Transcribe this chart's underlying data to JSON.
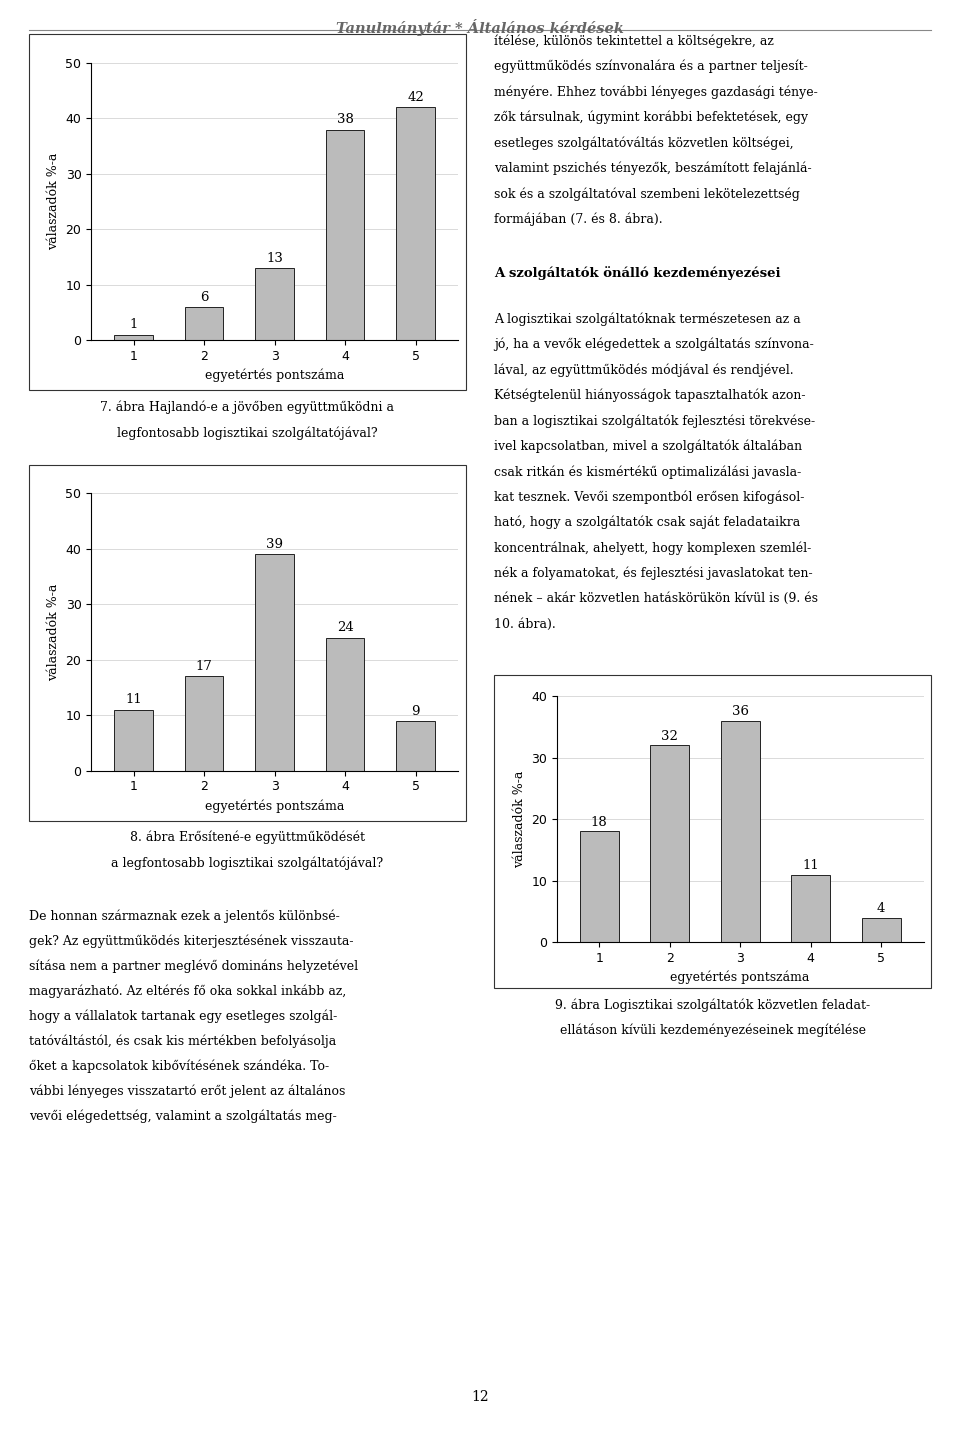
{
  "page_title": "Tanulmánytár * Általános kérdések",
  "page_number": "12",
  "background_color": "#ffffff",
  "bar_color": "#bbbbbb",
  "bar_edgecolor": "#222222",
  "chart1": {
    "values": [
      1,
      6,
      13,
      38,
      42
    ],
    "categories": [
      1,
      2,
      3,
      4,
      5
    ],
    "ylabel": "válaszadók %-a",
    "xlabel": "egyetértés pontszáma",
    "ylim": [
      0,
      50
    ],
    "yticks": [
      0,
      10,
      20,
      30,
      40,
      50
    ]
  },
  "caption1_line1": "7. ábra Hajlandó-e a jövőben együttműködni a",
  "caption1_line2": "legfontosabb logisztikai szolgáltatójával?",
  "chart2": {
    "values": [
      11,
      17,
      39,
      24,
      9
    ],
    "categories": [
      1,
      2,
      3,
      4,
      5
    ],
    "ylabel": "válaszadók %-a",
    "xlabel": "egyetértés pontszáma",
    "ylim": [
      0,
      50
    ],
    "yticks": [
      0,
      10,
      20,
      30,
      40,
      50
    ]
  },
  "caption2_line1": "8. ábra Erősítené-e együttműködését",
  "caption2_line2": "a legfontosabb logisztikai szolgáltatójával?",
  "right_text_top_lines": [
    "ítélése, különös tekintettel a költségekre, az",
    "együttműködés színvonalára és a partner teljesít-",
    "ményére. Ehhez további lényeges gazdasági ténye-",
    "zők társulnak, úgymint korábbi befektetések, egy",
    "esetleges szolgáltatóváltás közvetlen költségei,",
    "valamint pszichés tényezők, beszámított felajánlá-",
    "sok és a szolgáltatóval szembeni lekötelezettség",
    "formájában (7. és 8. ábra)."
  ],
  "right_heading": "A szolgáltatók önálló kezdeményezései",
  "right_text_middle_lines": [
    "A logisztikai szolgáltatóknak természetesen az a",
    "jó, ha a vevők elégedettek a szolgáltatás színvona-",
    "lával, az együttműködés módjával és rendjével.",
    "Kétségtelenül hiányosságok tapasztalhatók azon-",
    "ban a logisztikai szolgáltatók fejlesztési törekvése-",
    "ivel kapcsolatban, mivel a szolgáltatók általában",
    "csak ritkán és kismértékű optimalizálási javasla-",
    "kat tesznek. Vevői szempontból erősen kifogásol-",
    "ható, hogy a szolgáltatók csak saját feladataikra",
    "koncentrálnak, ahelyett, hogy komplexen szemlél-",
    "nék a folyamatokat, és fejlesztési javaslatokat ten-",
    "nének – akár közvetlen hatáskörükön kívül is (9. és",
    "10. ábra)."
  ],
  "left_text_bottom_lines": [
    "De honnan származnak ezek a jelentős különbsé-",
    "gek? Az együttműködés kiterjesztésének visszauta-",
    "sítása nem a partner meglévő domináns helyzetével",
    "magyarázható. Az eltérés fő oka sokkal inkább az,",
    "hogy a vállalatok tartanak egy esetleges szolgál-",
    "tatóváltástól, és csak kis mértékben befolyásolja",
    "őket a kapcsolatok kibővítésének szándéka. To-",
    "vábbi lényeges visszatartó erőt jelent az általános",
    "vevői elégedettség, valamint a szolgáltatás meg-"
  ],
  "chart3": {
    "values": [
      18,
      32,
      36,
      11,
      4
    ],
    "categories": [
      1,
      2,
      3,
      4,
      5
    ],
    "ylabel": "válaszadók %-a",
    "xlabel": "egyetértés pontszáma",
    "ylim": [
      0,
      40
    ],
    "yticks": [
      0,
      10,
      20,
      30,
      40
    ]
  },
  "caption3_line1": "9. ábra Logisztikai szolgáltatók közvetlen feladat-",
  "caption3_line2": "ellátáson kívüli kezdeményezéseinek megítélése"
}
